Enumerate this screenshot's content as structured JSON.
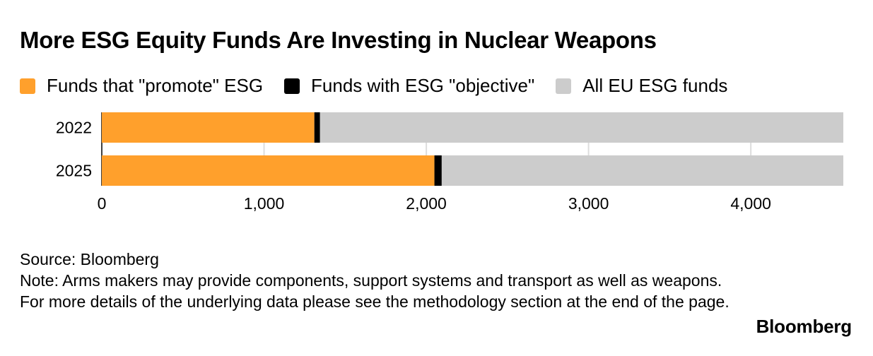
{
  "title": "More ESG Equity Funds Are Investing in Nuclear Weapons",
  "chart_data": {
    "type": "bar",
    "orientation": "horizontal",
    "stacked": true,
    "title": "More ESG Equity Funds Are Investing in Nuclear Weapons",
    "xlabel": "",
    "ylabel": "",
    "categories": [
      "2022",
      "2025"
    ],
    "series": [
      {
        "name": "Funds that \"promote\" ESG",
        "color": "#ffa02c",
        "values": [
          1310,
          2050
        ]
      },
      {
        "name": "Funds with ESG \"objective\"",
        "color": "#000000",
        "values": [
          35,
          45
        ]
      },
      {
        "name": "All EU ESG funds",
        "color": "#cccccc",
        "values": [
          3225,
          2475
        ]
      }
    ],
    "xlim": [
      0,
      4570
    ],
    "xticks": [
      0,
      1000,
      2000,
      3000,
      4000
    ],
    "xtick_labels": [
      "0",
      "1,000",
      "2,000",
      "3,000",
      "4,000"
    ],
    "grid": true,
    "legend_position": "top"
  },
  "footnote": {
    "source": "Source: Bloomberg",
    "note": "Note: Arms makers may provide components, support systems and transport as well as weapons. For more details of the underlying data please see the methodology section at the end of the page."
  },
  "brand": "Bloomberg"
}
